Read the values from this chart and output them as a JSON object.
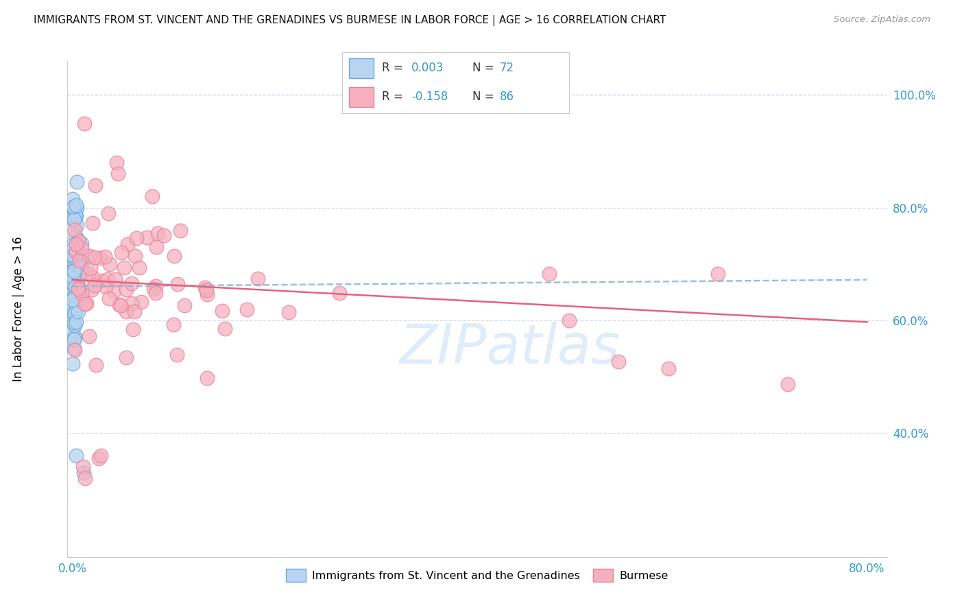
{
  "title": "IMMIGRANTS FROM ST. VINCENT AND THE GRENADINES VS BURMESE IN LABOR FORCE | AGE > 16 CORRELATION CHART",
  "source": "Source: ZipAtlas.com",
  "ylabel": "In Labor Force | Age > 16",
  "xlim": [
    -0.005,
    0.82
  ],
  "ylim": [
    0.18,
    1.06
  ],
  "xtick_positions": [
    0.0,
    0.1,
    0.2,
    0.3,
    0.4,
    0.5,
    0.6,
    0.7,
    0.8
  ],
  "xticklabels": [
    "0.0%",
    "",
    "",
    "",
    "",
    "",
    "",
    "",
    "80.0%"
  ],
  "ytick_positions": [
    0.4,
    0.6,
    0.8,
    1.0
  ],
  "yticklabels": [
    "40.0%",
    "60.0%",
    "80.0%",
    "100.0%"
  ],
  "blue_R": 0.003,
  "blue_N": 72,
  "pink_R": -0.158,
  "pink_N": 86,
  "blue_fill": "#b8d4f0",
  "blue_edge": "#6aa8d8",
  "pink_fill": "#f5b0c0",
  "pink_edge": "#e8809a",
  "blue_trend_color": "#88bbdd",
  "pink_trend_color": "#e8607a",
  "blue_trend_x": [
    0.0,
    0.8
  ],
  "blue_trend_y": [
    0.66,
    0.672
  ],
  "pink_trend_x": [
    0.0,
    0.8
  ],
  "pink_trend_y": [
    0.672,
    0.597
  ],
  "watermark": "ZIPatlas",
  "bg_color": "#ffffff",
  "grid_color": "#d0d8e8",
  "spine_color": "#cccccc",
  "title_color": "#111111",
  "source_color": "#999999",
  "tick_color": "#3399cc",
  "legend_label_blue": "Immigrants from St. Vincent and the Grenadines",
  "legend_label_pink": "Burmese"
}
